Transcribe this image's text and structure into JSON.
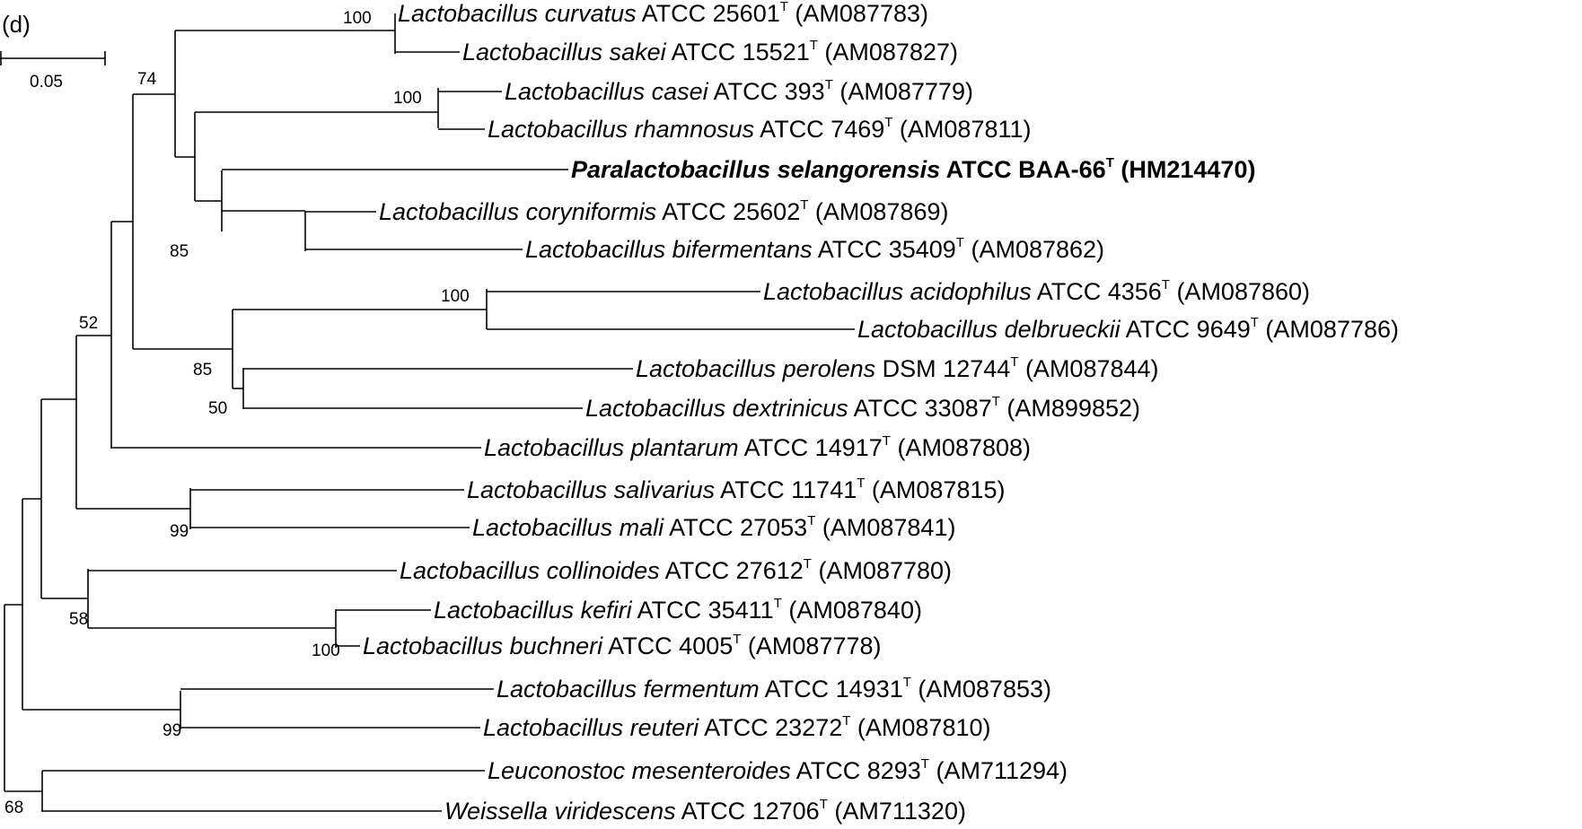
{
  "panel_label": "(d)",
  "scale_bar": {
    "label": "0.05",
    "value": 0.05
  },
  "leaves": [
    {
      "italic": "Lactobacillus curvatus",
      "strain": " ATCC 25601",
      "sup": "T",
      "acc": " (AM087783)",
      "bold": false
    },
    {
      "italic": "Lactobacillus sakei",
      "strain": " ATCC 15521",
      "sup": "T",
      "acc": " (AM087827)",
      "bold": false
    },
    {
      "italic": "Lactobacillus casei",
      "strain": " ATCC 393",
      "sup": "T",
      "acc": " (AM087779)",
      "bold": false
    },
    {
      "italic": "Lactobacillus rhamnosus",
      "strain": " ATCC 7469",
      "sup": "T",
      "acc": " (AM087811)",
      "bold": false
    },
    {
      "italic": "Paralactobacillus selangorensis",
      "strain": " ATCC BAA-66",
      "sup": "T",
      "acc": " (HM214470)",
      "bold": true
    },
    {
      "italic": "Lactobacillus coryniformis",
      "strain": " ATCC 25602",
      "sup": "T",
      "acc": " (AM087869)",
      "bold": false
    },
    {
      "italic": "Lactobacillus bifermentans",
      "strain": " ATCC 35409",
      "sup": "T",
      "acc": " (AM087862)",
      "bold": false
    },
    {
      "italic": "Lactobacillus acidophilus",
      "strain": " ATCC 4356",
      "sup": "T",
      "acc": " (AM087860)",
      "bold": false
    },
    {
      "italic": "Lactobacillus delbrueckii",
      "strain": " ATCC 9649",
      "sup": "T",
      "acc": " (AM087786)",
      "bold": false
    },
    {
      "italic": "Lactobacillus perolens",
      "strain": " DSM 12744",
      "sup": "T",
      "acc": " (AM087844)",
      "bold": false
    },
    {
      "italic": "Lactobacillus dextrinicus",
      "strain": " ATCC 33087",
      "sup": "T",
      "acc": " (AM899852)",
      "bold": false
    },
    {
      "italic": "Lactobacillus plantarum",
      "strain": " ATCC 14917",
      "sup": "T",
      "acc": " (AM087808)",
      "bold": false
    },
    {
      "italic": "Lactobacillus salivarius",
      "strain": " ATCC 11741",
      "sup": "T",
      "acc": " (AM087815)",
      "bold": false
    },
    {
      "italic": "Lactobacillus mali",
      "strain": " ATCC 27053",
      "sup": "T",
      "acc": " (AM087841)",
      "bold": false
    },
    {
      "italic": "Lactobacillus collinoides",
      "strain": " ATCC 27612",
      "sup": "T",
      "acc": " (AM087780)",
      "bold": false
    },
    {
      "italic": "Lactobacillus kefiri",
      "strain": " ATCC 35411",
      "sup": "T",
      "acc": " (AM087840)",
      "bold": false
    },
    {
      "italic": "Lactobacillus buchneri",
      "strain": " ATCC 4005",
      "sup": "T",
      "acc": " (AM087778)",
      "bold": false
    },
    {
      "italic": "Lactobacillus fermentum",
      "strain": " ATCC 14931",
      "sup": "T",
      "acc": " (AM087853)",
      "bold": false
    },
    {
      "italic": "Lactobacillus reuteri",
      "strain": " ATCC 23272",
      "sup": "T",
      "acc": " (AM087810)",
      "bold": false
    },
    {
      "italic": "Leuconostoc mesenteroides",
      "strain": " ATCC 8293",
      "sup": "T",
      "acc": " (AM711294)",
      "bold": false
    },
    {
      "italic": "Weissella viridescens",
      "strain": " ATCC 12706",
      "sup": "T",
      "acc": " (AM711320)",
      "bold": false
    }
  ],
  "bootstrap_values": [
    "100",
    "74",
    "100",
    "85",
    "100",
    "52",
    "85",
    "50",
    "99",
    "58",
    "100",
    "99",
    "68"
  ]
}
